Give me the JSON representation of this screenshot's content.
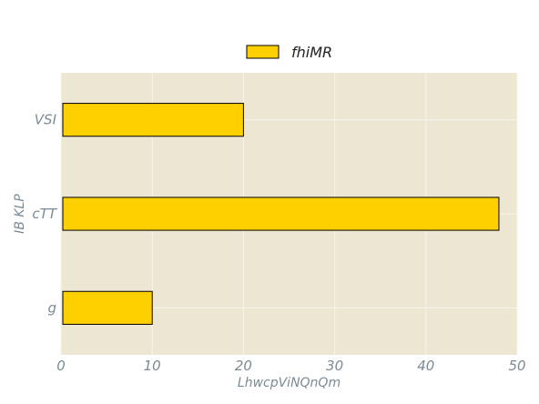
{
  "chart_data": {
    "type": "bar",
    "orientation": "horizontal",
    "categories": [
      "VSI",
      "cTT",
      "g"
    ],
    "series": [
      {
        "name": "fhiMR",
        "values": [
          20,
          48,
          10
        ]
      }
    ],
    "xlabel": "LhwcpViNQnQm",
    "ylabel": "IB KLP",
    "xlim": [
      0,
      50
    ],
    "xticks": [
      0,
      10,
      20,
      30,
      40,
      50
    ],
    "grid": true,
    "legend_position": "top-center",
    "colors": {
      "bar_fill": "#ffd000",
      "bar_edge": "#000000",
      "plot_background": "#ede6d3",
      "grid": "#f8f4ea",
      "axis_text": "#7a8a96"
    }
  }
}
